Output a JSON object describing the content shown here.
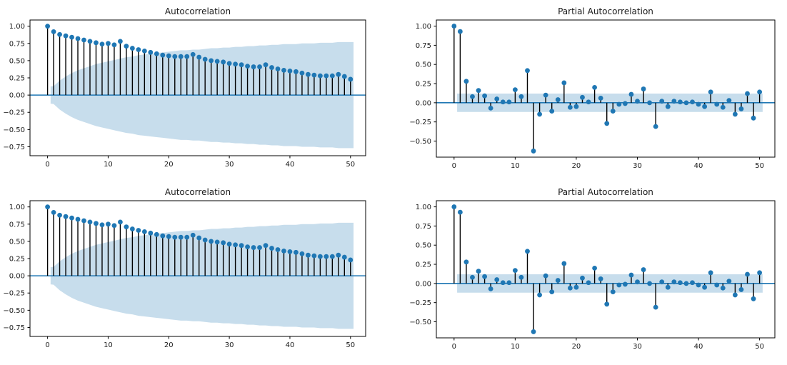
{
  "figure": {
    "background": "#ffffff",
    "layout": "2x2 grid of statsmodels ACF/PACF plots; bottom row repeats top row"
  },
  "colors": {
    "accent_blue": "#1f77b4",
    "stem_black": "#000000",
    "band_fill": "rgba(31,119,180,0.25)",
    "spine": "#000000",
    "tick_text": "#1a1a1a"
  },
  "chart_data": [
    {
      "type": "stem",
      "title": "Autocorrelation",
      "xlabel": "",
      "ylabel": "",
      "grid": false,
      "legend": null,
      "xlim": [
        -2.9,
        52.5
      ],
      "ylim": [
        -0.88,
        1.09
      ],
      "xticks": [
        0,
        10,
        20,
        30,
        40,
        50
      ],
      "yticks": [
        1.0,
        0.75,
        0.5,
        0.25,
        0.0,
        -0.25,
        -0.5,
        -0.75
      ],
      "lags_start": 0,
      "values": [
        1.0,
        0.92,
        0.88,
        0.86,
        0.84,
        0.82,
        0.8,
        0.78,
        0.76,
        0.74,
        0.75,
        0.73,
        0.78,
        0.71,
        0.68,
        0.66,
        0.64,
        0.62,
        0.6,
        0.58,
        0.57,
        0.56,
        0.56,
        0.56,
        0.59,
        0.55,
        0.52,
        0.5,
        0.49,
        0.48,
        0.46,
        0.45,
        0.44,
        0.42,
        0.41,
        0.41,
        0.44,
        0.4,
        0.38,
        0.36,
        0.35,
        0.34,
        0.32,
        0.3,
        0.29,
        0.28,
        0.28,
        0.28,
        0.3,
        0.27,
        0.23
      ],
      "conf_band": {
        "shape": "expanding",
        "symmetric_about_zero": true,
        "x": [
          0.5,
          1,
          2,
          3,
          4,
          5,
          6,
          7,
          8,
          9,
          10,
          11,
          12,
          13,
          14,
          15,
          16,
          17,
          18,
          19,
          20,
          21,
          22,
          23,
          24,
          25,
          26,
          27,
          28,
          29,
          30,
          31,
          32,
          33,
          34,
          35,
          36,
          37,
          38,
          39,
          40,
          41,
          42,
          43,
          44,
          45,
          46,
          47,
          48,
          49,
          50,
          50.5
        ],
        "upper": [
          0.125,
          0.13,
          0.21,
          0.27,
          0.32,
          0.36,
          0.39,
          0.42,
          0.45,
          0.47,
          0.49,
          0.51,
          0.53,
          0.55,
          0.56,
          0.58,
          0.59,
          0.6,
          0.61,
          0.62,
          0.63,
          0.64,
          0.65,
          0.65,
          0.66,
          0.66,
          0.67,
          0.68,
          0.68,
          0.69,
          0.69,
          0.7,
          0.7,
          0.71,
          0.71,
          0.72,
          0.72,
          0.73,
          0.73,
          0.74,
          0.74,
          0.74,
          0.75,
          0.75,
          0.75,
          0.76,
          0.76,
          0.76,
          0.77,
          0.77,
          0.77,
          0.77
        ]
      }
    },
    {
      "type": "stem",
      "title": "Partial Autocorrelation",
      "xlabel": "",
      "ylabel": "",
      "grid": false,
      "legend": null,
      "xlim": [
        -2.9,
        52.5
      ],
      "ylim": [
        -0.71,
        1.08
      ],
      "xticks": [
        0,
        10,
        20,
        30,
        40,
        50
      ],
      "yticks": [
        1.0,
        0.75,
        0.5,
        0.25,
        0.0,
        -0.25,
        -0.5
      ],
      "lags_start": 0,
      "values": [
        1.0,
        0.93,
        0.28,
        0.08,
        0.16,
        0.09,
        -0.07,
        0.05,
        0.01,
        0.01,
        0.17,
        0.08,
        0.42,
        -0.63,
        -0.15,
        0.1,
        -0.11,
        0.04,
        0.26,
        -0.06,
        -0.05,
        0.07,
        0.01,
        0.2,
        0.06,
        -0.27,
        -0.11,
        -0.02,
        -0.01,
        0.11,
        0.02,
        0.18,
        0.0,
        -0.31,
        0.02,
        -0.05,
        0.02,
        0.01,
        0.0,
        0.01,
        -0.02,
        -0.05,
        0.14,
        -0.02,
        -0.06,
        0.03,
        -0.15,
        -0.08,
        0.12,
        -0.2,
        0.14
      ],
      "conf_band": {
        "shape": "constant",
        "symmetric_about_zero": true,
        "value": 0.12,
        "x_start": 0.5,
        "x_end": 50.5
      }
    },
    {
      "type": "stem",
      "title": "Autocorrelation",
      "xlabel": "",
      "ylabel": "",
      "grid": false,
      "legend": null,
      "xlim": [
        -2.9,
        52.5
      ],
      "ylim": [
        -0.88,
        1.09
      ],
      "xticks": [
        0,
        10,
        20,
        30,
        40,
        50
      ],
      "yticks": [
        1.0,
        0.75,
        0.5,
        0.25,
        0.0,
        -0.25,
        -0.5,
        -0.75
      ],
      "lags_start": 0,
      "values": [
        1.0,
        0.92,
        0.88,
        0.86,
        0.84,
        0.82,
        0.8,
        0.78,
        0.76,
        0.74,
        0.75,
        0.73,
        0.78,
        0.71,
        0.68,
        0.66,
        0.64,
        0.62,
        0.6,
        0.58,
        0.57,
        0.56,
        0.56,
        0.56,
        0.59,
        0.55,
        0.52,
        0.5,
        0.49,
        0.48,
        0.46,
        0.45,
        0.44,
        0.42,
        0.41,
        0.41,
        0.44,
        0.4,
        0.38,
        0.36,
        0.35,
        0.34,
        0.32,
        0.3,
        0.29,
        0.28,
        0.28,
        0.28,
        0.3,
        0.27,
        0.23
      ],
      "conf_band": {
        "shape": "expanding",
        "symmetric_about_zero": true,
        "x": [
          0.5,
          1,
          2,
          3,
          4,
          5,
          6,
          7,
          8,
          9,
          10,
          11,
          12,
          13,
          14,
          15,
          16,
          17,
          18,
          19,
          20,
          21,
          22,
          23,
          24,
          25,
          26,
          27,
          28,
          29,
          30,
          31,
          32,
          33,
          34,
          35,
          36,
          37,
          38,
          39,
          40,
          41,
          42,
          43,
          44,
          45,
          46,
          47,
          48,
          49,
          50,
          50.5
        ],
        "upper": [
          0.125,
          0.13,
          0.21,
          0.27,
          0.32,
          0.36,
          0.39,
          0.42,
          0.45,
          0.47,
          0.49,
          0.51,
          0.53,
          0.55,
          0.56,
          0.58,
          0.59,
          0.6,
          0.61,
          0.62,
          0.63,
          0.64,
          0.65,
          0.65,
          0.66,
          0.66,
          0.67,
          0.68,
          0.68,
          0.69,
          0.69,
          0.7,
          0.7,
          0.71,
          0.71,
          0.72,
          0.72,
          0.73,
          0.73,
          0.74,
          0.74,
          0.74,
          0.75,
          0.75,
          0.75,
          0.76,
          0.76,
          0.76,
          0.77,
          0.77,
          0.77,
          0.77
        ]
      }
    },
    {
      "type": "stem",
      "title": "Partial Autocorrelation",
      "xlabel": "",
      "ylabel": "",
      "grid": false,
      "legend": null,
      "xlim": [
        -2.9,
        52.5
      ],
      "ylim": [
        -0.71,
        1.08
      ],
      "xticks": [
        0,
        10,
        20,
        30,
        40,
        50
      ],
      "yticks": [
        1.0,
        0.75,
        0.5,
        0.25,
        0.0,
        -0.25,
        -0.5
      ],
      "lags_start": 0,
      "values": [
        1.0,
        0.93,
        0.28,
        0.08,
        0.16,
        0.09,
        -0.07,
        0.05,
        0.01,
        0.01,
        0.17,
        0.08,
        0.42,
        -0.63,
        -0.15,
        0.1,
        -0.11,
        0.04,
        0.26,
        -0.06,
        -0.05,
        0.07,
        0.01,
        0.2,
        0.06,
        -0.27,
        -0.11,
        -0.02,
        -0.01,
        0.11,
        0.02,
        0.18,
        0.0,
        -0.31,
        0.02,
        -0.05,
        0.02,
        0.01,
        0.0,
        0.01,
        -0.02,
        -0.05,
        0.14,
        -0.02,
        -0.06,
        0.03,
        -0.15,
        -0.08,
        0.12,
        -0.2,
        0.14
      ],
      "conf_band": {
        "shape": "constant",
        "symmetric_about_zero": true,
        "value": 0.12,
        "x_start": 0.5,
        "x_end": 50.5
      }
    }
  ]
}
